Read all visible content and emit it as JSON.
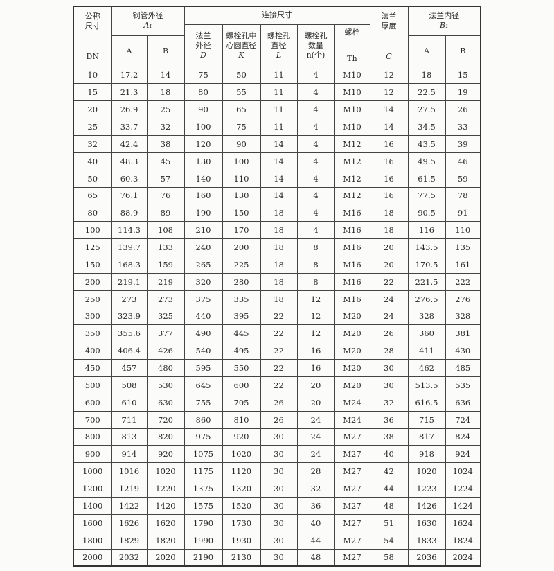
{
  "header": {
    "nominal_size": "公称尺寸",
    "nominal_symbol": "DN",
    "pipe_od": "钢管外径",
    "pipe_od_symbol": "A₁",
    "pipe_od_a": "A",
    "pipe_od_b": "B",
    "connection": "连接尺寸",
    "flange_od": "法兰外径",
    "flange_od_symbol": "D",
    "bolt_circle": "螺栓孔中心圆直径",
    "bolt_circle_symbol": "K",
    "bolt_hole_dia": "螺栓孔直径",
    "bolt_hole_dia_symbol": "L",
    "bolt_hole_count": "螺栓孔数量",
    "bolt_hole_count_symbol": "n(个)",
    "bolt": "螺栓",
    "bolt_symbol": "Th",
    "flange_thickness": "法兰厚度",
    "flange_thickness_symbol": "C",
    "flange_id": "法兰内径",
    "flange_id_symbol": "B₁",
    "flange_id_a": "A",
    "flange_id_b": "B"
  },
  "rows": [
    [
      "10",
      "17.2",
      "14",
      "75",
      "50",
      "11",
      "4",
      "M10",
      "12",
      "18",
      "15"
    ],
    [
      "15",
      "21.3",
      "18",
      "80",
      "55",
      "11",
      "4",
      "M10",
      "12",
      "22.5",
      "19"
    ],
    [
      "20",
      "26.9",
      "25",
      "90",
      "65",
      "11",
      "4",
      "M10",
      "14",
      "27.5",
      "26"
    ],
    [
      "25",
      "33.7",
      "32",
      "100",
      "75",
      "11",
      "4",
      "M10",
      "14",
      "34.5",
      "33"
    ],
    [
      "32",
      "42.4",
      "38",
      "120",
      "90",
      "14",
      "4",
      "M12",
      "16",
      "43.5",
      "39"
    ],
    [
      "40",
      "48.3",
      "45",
      "130",
      "100",
      "14",
      "4",
      "M12",
      "16",
      "49.5",
      "46"
    ],
    [
      "50",
      "60.3",
      "57",
      "140",
      "110",
      "14",
      "4",
      "M12",
      "16",
      "61.5",
      "59"
    ],
    [
      "65",
      "76.1",
      "76",
      "160",
      "130",
      "14",
      "4",
      "M12",
      "16",
      "77.5",
      "78"
    ],
    [
      "80",
      "88.9",
      "89",
      "190",
      "150",
      "18",
      "4",
      "M16",
      "18",
      "90.5",
      "91"
    ],
    [
      "100",
      "114.3",
      "108",
      "210",
      "170",
      "18",
      "4",
      "M16",
      "18",
      "116",
      "110"
    ],
    [
      "125",
      "139.7",
      "133",
      "240",
      "200",
      "18",
      "8",
      "M16",
      "20",
      "143.5",
      "135"
    ],
    [
      "150",
      "168.3",
      "159",
      "265",
      "225",
      "18",
      "8",
      "M16",
      "20",
      "170.5",
      "161"
    ],
    [
      "200",
      "219.1",
      "219",
      "320",
      "280",
      "18",
      "8",
      "M16",
      "22",
      "221.5",
      "222"
    ],
    [
      "250",
      "273",
      "273",
      "375",
      "335",
      "18",
      "12",
      "M16",
      "24",
      "276.5",
      "276"
    ],
    [
      "300",
      "323.9",
      "325",
      "440",
      "395",
      "22",
      "12",
      "M20",
      "24",
      "328",
      "328"
    ],
    [
      "350",
      "355.6",
      "377",
      "490",
      "445",
      "22",
      "12",
      "M20",
      "26",
      "360",
      "381"
    ],
    [
      "400",
      "406.4",
      "426",
      "540",
      "495",
      "22",
      "16",
      "M20",
      "28",
      "411",
      "430"
    ],
    [
      "450",
      "457",
      "480",
      "595",
      "550",
      "22",
      "16",
      "M20",
      "30",
      "462",
      "485"
    ],
    [
      "500",
      "508",
      "530",
      "645",
      "600",
      "22",
      "20",
      "M20",
      "30",
      "513.5",
      "535"
    ],
    [
      "600",
      "610",
      "630",
      "755",
      "705",
      "26",
      "20",
      "M24",
      "32",
      "616.5",
      "636"
    ],
    [
      "700",
      "711",
      "720",
      "860",
      "810",
      "26",
      "24",
      "M24",
      "36",
      "715",
      "724"
    ],
    [
      "800",
      "813",
      "820",
      "975",
      "920",
      "30",
      "24",
      "M27",
      "38",
      "817",
      "824"
    ],
    [
      "900",
      "914",
      "920",
      "1075",
      "1020",
      "30",
      "24",
      "M27",
      "40",
      "918",
      "924"
    ],
    [
      "1000",
      "1016",
      "1020",
      "1175",
      "1120",
      "30",
      "28",
      "M27",
      "42",
      "1020",
      "1024"
    ],
    [
      "1200",
      "1219",
      "1220",
      "1375",
      "1320",
      "30",
      "32",
      "M27",
      "44",
      "1223",
      "1224"
    ],
    [
      "1400",
      "1422",
      "1420",
      "1575",
      "1520",
      "30",
      "36",
      "M27",
      "48",
      "1426",
      "1424"
    ],
    [
      "1600",
      "1626",
      "1620",
      "1790",
      "1730",
      "30",
      "40",
      "M27",
      "51",
      "1630",
      "1624"
    ],
    [
      "1800",
      "1829",
      "1820",
      "1990",
      "1930",
      "30",
      "44",
      "M27",
      "54",
      "1833",
      "1824"
    ],
    [
      "2000",
      "2032",
      "2020",
      "2190",
      "2130",
      "30",
      "48",
      "M27",
      "58",
      "2036",
      "2024"
    ]
  ]
}
